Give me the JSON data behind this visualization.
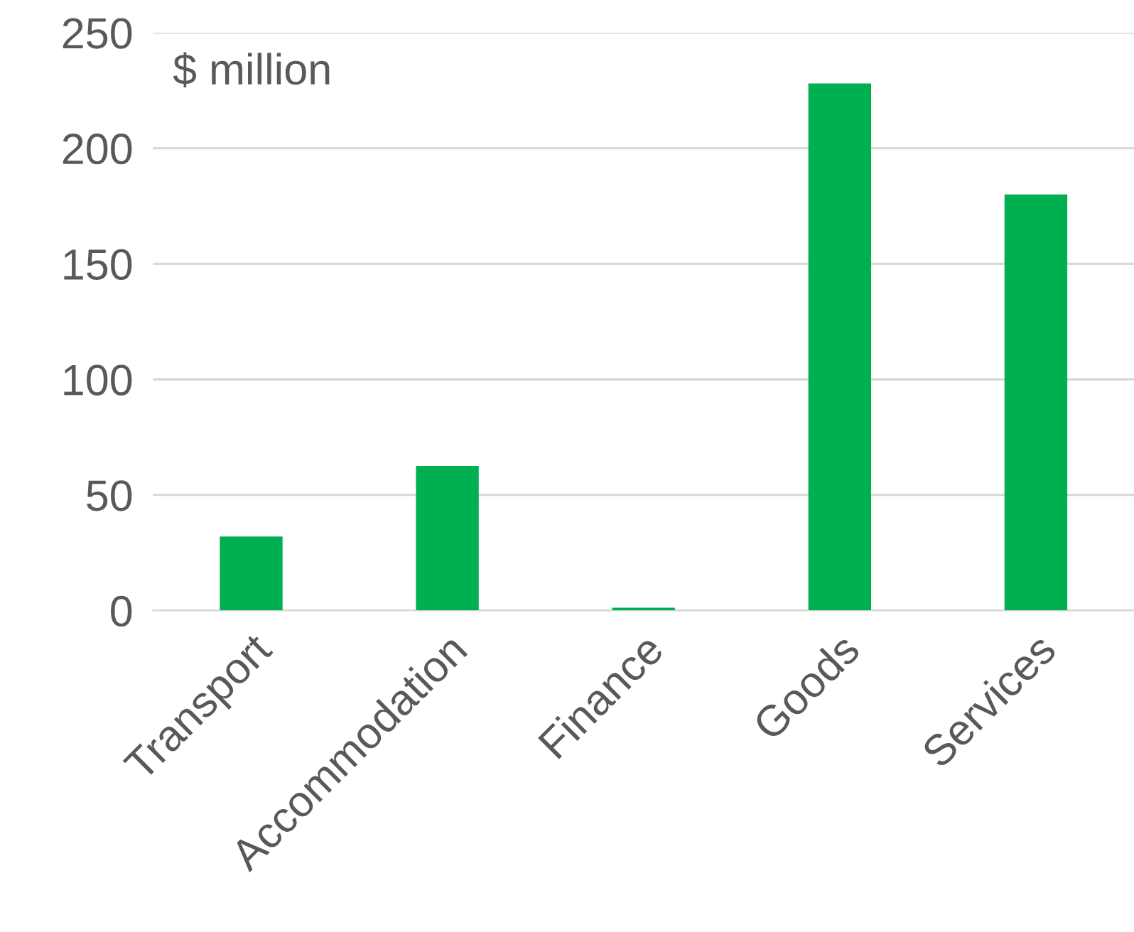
{
  "chart_data": {
    "type": "bar",
    "categories": [
      "Transport",
      "Accommodation",
      "Finance",
      "Goods",
      "Services"
    ],
    "values": [
      32,
      62.5,
      1.2,
      228,
      180
    ],
    "color": "#00b050",
    "ylim": [
      0,
      250
    ],
    "yticks": [
      0,
      50,
      100,
      150,
      200,
      250
    ],
    "grid": "y",
    "annotations": [
      "$ million"
    ]
  }
}
